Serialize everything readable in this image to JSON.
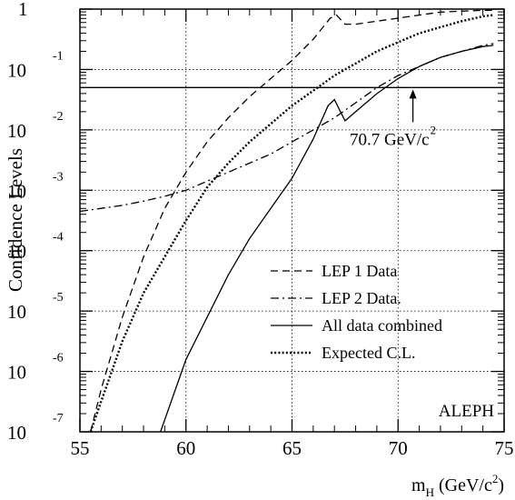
{
  "chart_data": {
    "type": "line",
    "ylabel": "Confidence Levels",
    "xlabel_main": "m",
    "xlabel_sub": "H",
    "xlabel_unit_prefix": " (GeV/c",
    "xlabel_unit_sup": "2",
    "xlabel_unit_suffix": ")",
    "experiment_label": "ALEPH",
    "xlim": [
      55,
      75
    ],
    "ylim_log10": [
      -7,
      0
    ],
    "yscale": "log",
    "grid": true,
    "x_ticks": [
      "55",
      "60",
      "65",
      "70",
      "75"
    ],
    "y_ticks": [
      {
        "base": "1",
        "exp": ""
      },
      {
        "base": "10",
        "exp": "-1"
      },
      {
        "base": "10",
        "exp": "-2"
      },
      {
        "base": "10",
        "exp": "-3"
      },
      {
        "base": "10",
        "exp": "-4"
      },
      {
        "base": "10",
        "exp": "-5"
      },
      {
        "base": "10",
        "exp": "-6"
      },
      {
        "base": "10",
        "exp": "-7"
      }
    ],
    "reference_line": {
      "log10_y": -1.3
    },
    "annotation": {
      "text": "70.7 GeV/c",
      "sup": "2",
      "x": 70.7,
      "log10_y": -1.3
    },
    "legend_position": "lower-middle",
    "series": [
      {
        "name": "LEP 1 Data",
        "style": "dashed",
        "points": [
          [
            55.5,
            -7
          ],
          [
            56,
            -6.3
          ],
          [
            57,
            -5.1
          ],
          [
            58,
            -4.1
          ],
          [
            59,
            -3.3
          ],
          [
            60,
            -2.7
          ],
          [
            61,
            -2.2
          ],
          [
            62,
            -1.8
          ],
          [
            63,
            -1.45
          ],
          [
            64,
            -1.15
          ],
          [
            65,
            -0.85
          ],
          [
            66,
            -0.5
          ],
          [
            66.8,
            -0.15
          ],
          [
            67.1,
            -0.1
          ],
          [
            67.5,
            -0.25
          ],
          [
            68,
            -0.25
          ],
          [
            69,
            -0.2
          ],
          [
            70,
            -0.15
          ],
          [
            71,
            -0.1
          ],
          [
            72,
            -0.05
          ],
          [
            74,
            -0.02
          ],
          [
            74.5,
            -0.02
          ]
        ]
      },
      {
        "name": "LEP 2 Data.",
        "style": "dashdot",
        "points": [
          [
            55,
            -3.35
          ],
          [
            56,
            -3.3
          ],
          [
            57,
            -3.25
          ],
          [
            58,
            -3.18
          ],
          [
            59,
            -3.1
          ],
          [
            60,
            -3.0
          ],
          [
            61,
            -2.85
          ],
          [
            62,
            -2.7
          ],
          [
            63,
            -2.55
          ],
          [
            64,
            -2.4
          ],
          [
            65,
            -2.2
          ],
          [
            66,
            -2.0
          ],
          [
            67,
            -1.8
          ],
          [
            68,
            -1.55
          ],
          [
            69,
            -1.3
          ],
          [
            70,
            -1.1
          ],
          [
            71,
            -0.95
          ],
          [
            72,
            -0.8
          ],
          [
            73,
            -0.7
          ],
          [
            74,
            -0.6
          ],
          [
            74.5,
            -0.57
          ]
        ]
      },
      {
        "name": "All data combined",
        "style": "solid",
        "points": [
          [
            58.8,
            -7
          ],
          [
            59.5,
            -6.3
          ],
          [
            60,
            -5.8
          ],
          [
            61,
            -5.1
          ],
          [
            62,
            -4.4
          ],
          [
            63,
            -3.8
          ],
          [
            64,
            -3.3
          ],
          [
            65,
            -2.8
          ],
          [
            66,
            -2.15
          ],
          [
            66.7,
            -1.6
          ],
          [
            67,
            -1.5
          ],
          [
            67.5,
            -1.85
          ],
          [
            68,
            -1.7
          ],
          [
            69,
            -1.4
          ],
          [
            70,
            -1.15
          ],
          [
            71,
            -0.95
          ],
          [
            72,
            -0.8
          ],
          [
            73,
            -0.7
          ],
          [
            74,
            -0.62
          ],
          [
            74.5,
            -0.6
          ]
        ]
      },
      {
        "name": "Expected C.L.",
        "style": "dotted",
        "points": [
          [
            55.5,
            -7
          ],
          [
            56,
            -6.5
          ],
          [
            57,
            -5.5
          ],
          [
            58,
            -4.7
          ],
          [
            59,
            -4.1
          ],
          [
            60,
            -3.5
          ],
          [
            61,
            -2.95
          ],
          [
            62,
            -2.55
          ],
          [
            63,
            -2.2
          ],
          [
            64,
            -1.9
          ],
          [
            65,
            -1.6
          ],
          [
            66,
            -1.35
          ],
          [
            67,
            -1.1
          ],
          [
            68,
            -0.9
          ],
          [
            69,
            -0.7
          ],
          [
            70,
            -0.55
          ],
          [
            71,
            -0.4
          ],
          [
            72,
            -0.3
          ],
          [
            73,
            -0.2
          ],
          [
            74,
            -0.12
          ],
          [
            74.5,
            -0.1
          ]
        ]
      }
    ]
  }
}
